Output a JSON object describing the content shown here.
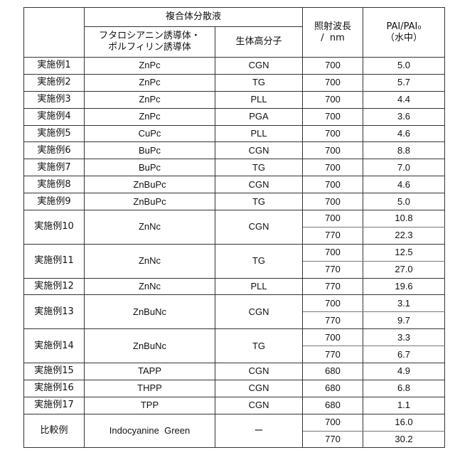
{
  "header": {
    "group": "複合体分散液",
    "derivative": "フタロシアニン誘導体・ポルフィリン誘導体",
    "derivative_line1": "フタロシアニン誘導体・",
    "derivative_line2": "ポルフィリン誘導体",
    "polymer": "生体高分子",
    "wavelength_line1": "照射波長",
    "wavelength_line2": "/  nm",
    "pai_line1": "PAI/PAI₀",
    "pai_line2": "（水中）"
  },
  "rows": [
    {
      "label": "実施例1",
      "derivative": "ZnPc",
      "polymer": "CGN",
      "measurements": [
        {
          "wavelength": "700",
          "pai": "5.0"
        }
      ]
    },
    {
      "label": "実施例2",
      "derivative": "ZnPc",
      "polymer": "TG",
      "measurements": [
        {
          "wavelength": "700",
          "pai": "5.7"
        }
      ]
    },
    {
      "label": "実施例3",
      "derivative": "ZnPc",
      "polymer": "PLL",
      "measurements": [
        {
          "wavelength": "700",
          "pai": "4.4"
        }
      ]
    },
    {
      "label": "実施例4",
      "derivative": "ZnPc",
      "polymer": "PGA",
      "measurements": [
        {
          "wavelength": "700",
          "pai": "3.6"
        }
      ]
    },
    {
      "label": "実施例5",
      "derivative": "CuPc",
      "polymer": "PLL",
      "measurements": [
        {
          "wavelength": "700",
          "pai": "4.6"
        }
      ]
    },
    {
      "label": "実施例6",
      "derivative": "BuPc",
      "polymer": "CGN",
      "measurements": [
        {
          "wavelength": "700",
          "pai": "8.8"
        }
      ]
    },
    {
      "label": "実施例7",
      "derivative": "BuPc",
      "polymer": "TG",
      "measurements": [
        {
          "wavelength": "700",
          "pai": "7.0"
        }
      ]
    },
    {
      "label": "実施例8",
      "derivative": "ZnBuPc",
      "polymer": "CGN",
      "measurements": [
        {
          "wavelength": "700",
          "pai": "4.6"
        }
      ]
    },
    {
      "label": "実施例9",
      "derivative": "ZnBuPc",
      "polymer": "TG",
      "measurements": [
        {
          "wavelength": "700",
          "pai": "5.0"
        }
      ]
    },
    {
      "label": "実施例10",
      "derivative": "ZnNc",
      "polymer": "CGN",
      "measurements": [
        {
          "wavelength": "700",
          "pai": "10.8"
        },
        {
          "wavelength": "770",
          "pai": "22.3"
        }
      ]
    },
    {
      "label": "実施例11",
      "derivative": "ZnNc",
      "polymer": "TG",
      "measurements": [
        {
          "wavelength": "700",
          "pai": "12.5"
        },
        {
          "wavelength": "770",
          "pai": "27.0"
        }
      ]
    },
    {
      "label": "実施例12",
      "derivative": "ZnNc",
      "polymer": "PLL",
      "measurements": [
        {
          "wavelength": "770",
          "pai": "19.6"
        }
      ]
    },
    {
      "label": "実施例13",
      "derivative": "ZnBuNc",
      "polymer": "CGN",
      "measurements": [
        {
          "wavelength": "700",
          "pai": "3.1"
        },
        {
          "wavelength": "770",
          "pai": "9.7"
        }
      ]
    },
    {
      "label": "実施例14",
      "derivative": "ZnBuNc",
      "polymer": "TG",
      "measurements": [
        {
          "wavelength": "700",
          "pai": "3.3"
        },
        {
          "wavelength": "770",
          "pai": "6.7"
        }
      ]
    },
    {
      "label": "実施例15",
      "derivative": "TAPP",
      "polymer": "CGN",
      "measurements": [
        {
          "wavelength": "680",
          "pai": "4.9"
        }
      ]
    },
    {
      "label": "実施例16",
      "derivative": "THPP",
      "polymer": "CGN",
      "measurements": [
        {
          "wavelength": "680",
          "pai": "6.8"
        }
      ]
    },
    {
      "label": "実施例17",
      "derivative": "TPP",
      "polymer": "CGN",
      "measurements": [
        {
          "wavelength": "680",
          "pai": "1.1"
        }
      ]
    },
    {
      "label": "比較例",
      "derivative": "Indocyanine  Green",
      "polymer": "ー",
      "measurements": [
        {
          "wavelength": "700",
          "pai": "16.0"
        },
        {
          "wavelength": "770",
          "pai": "30.2"
        }
      ]
    }
  ]
}
